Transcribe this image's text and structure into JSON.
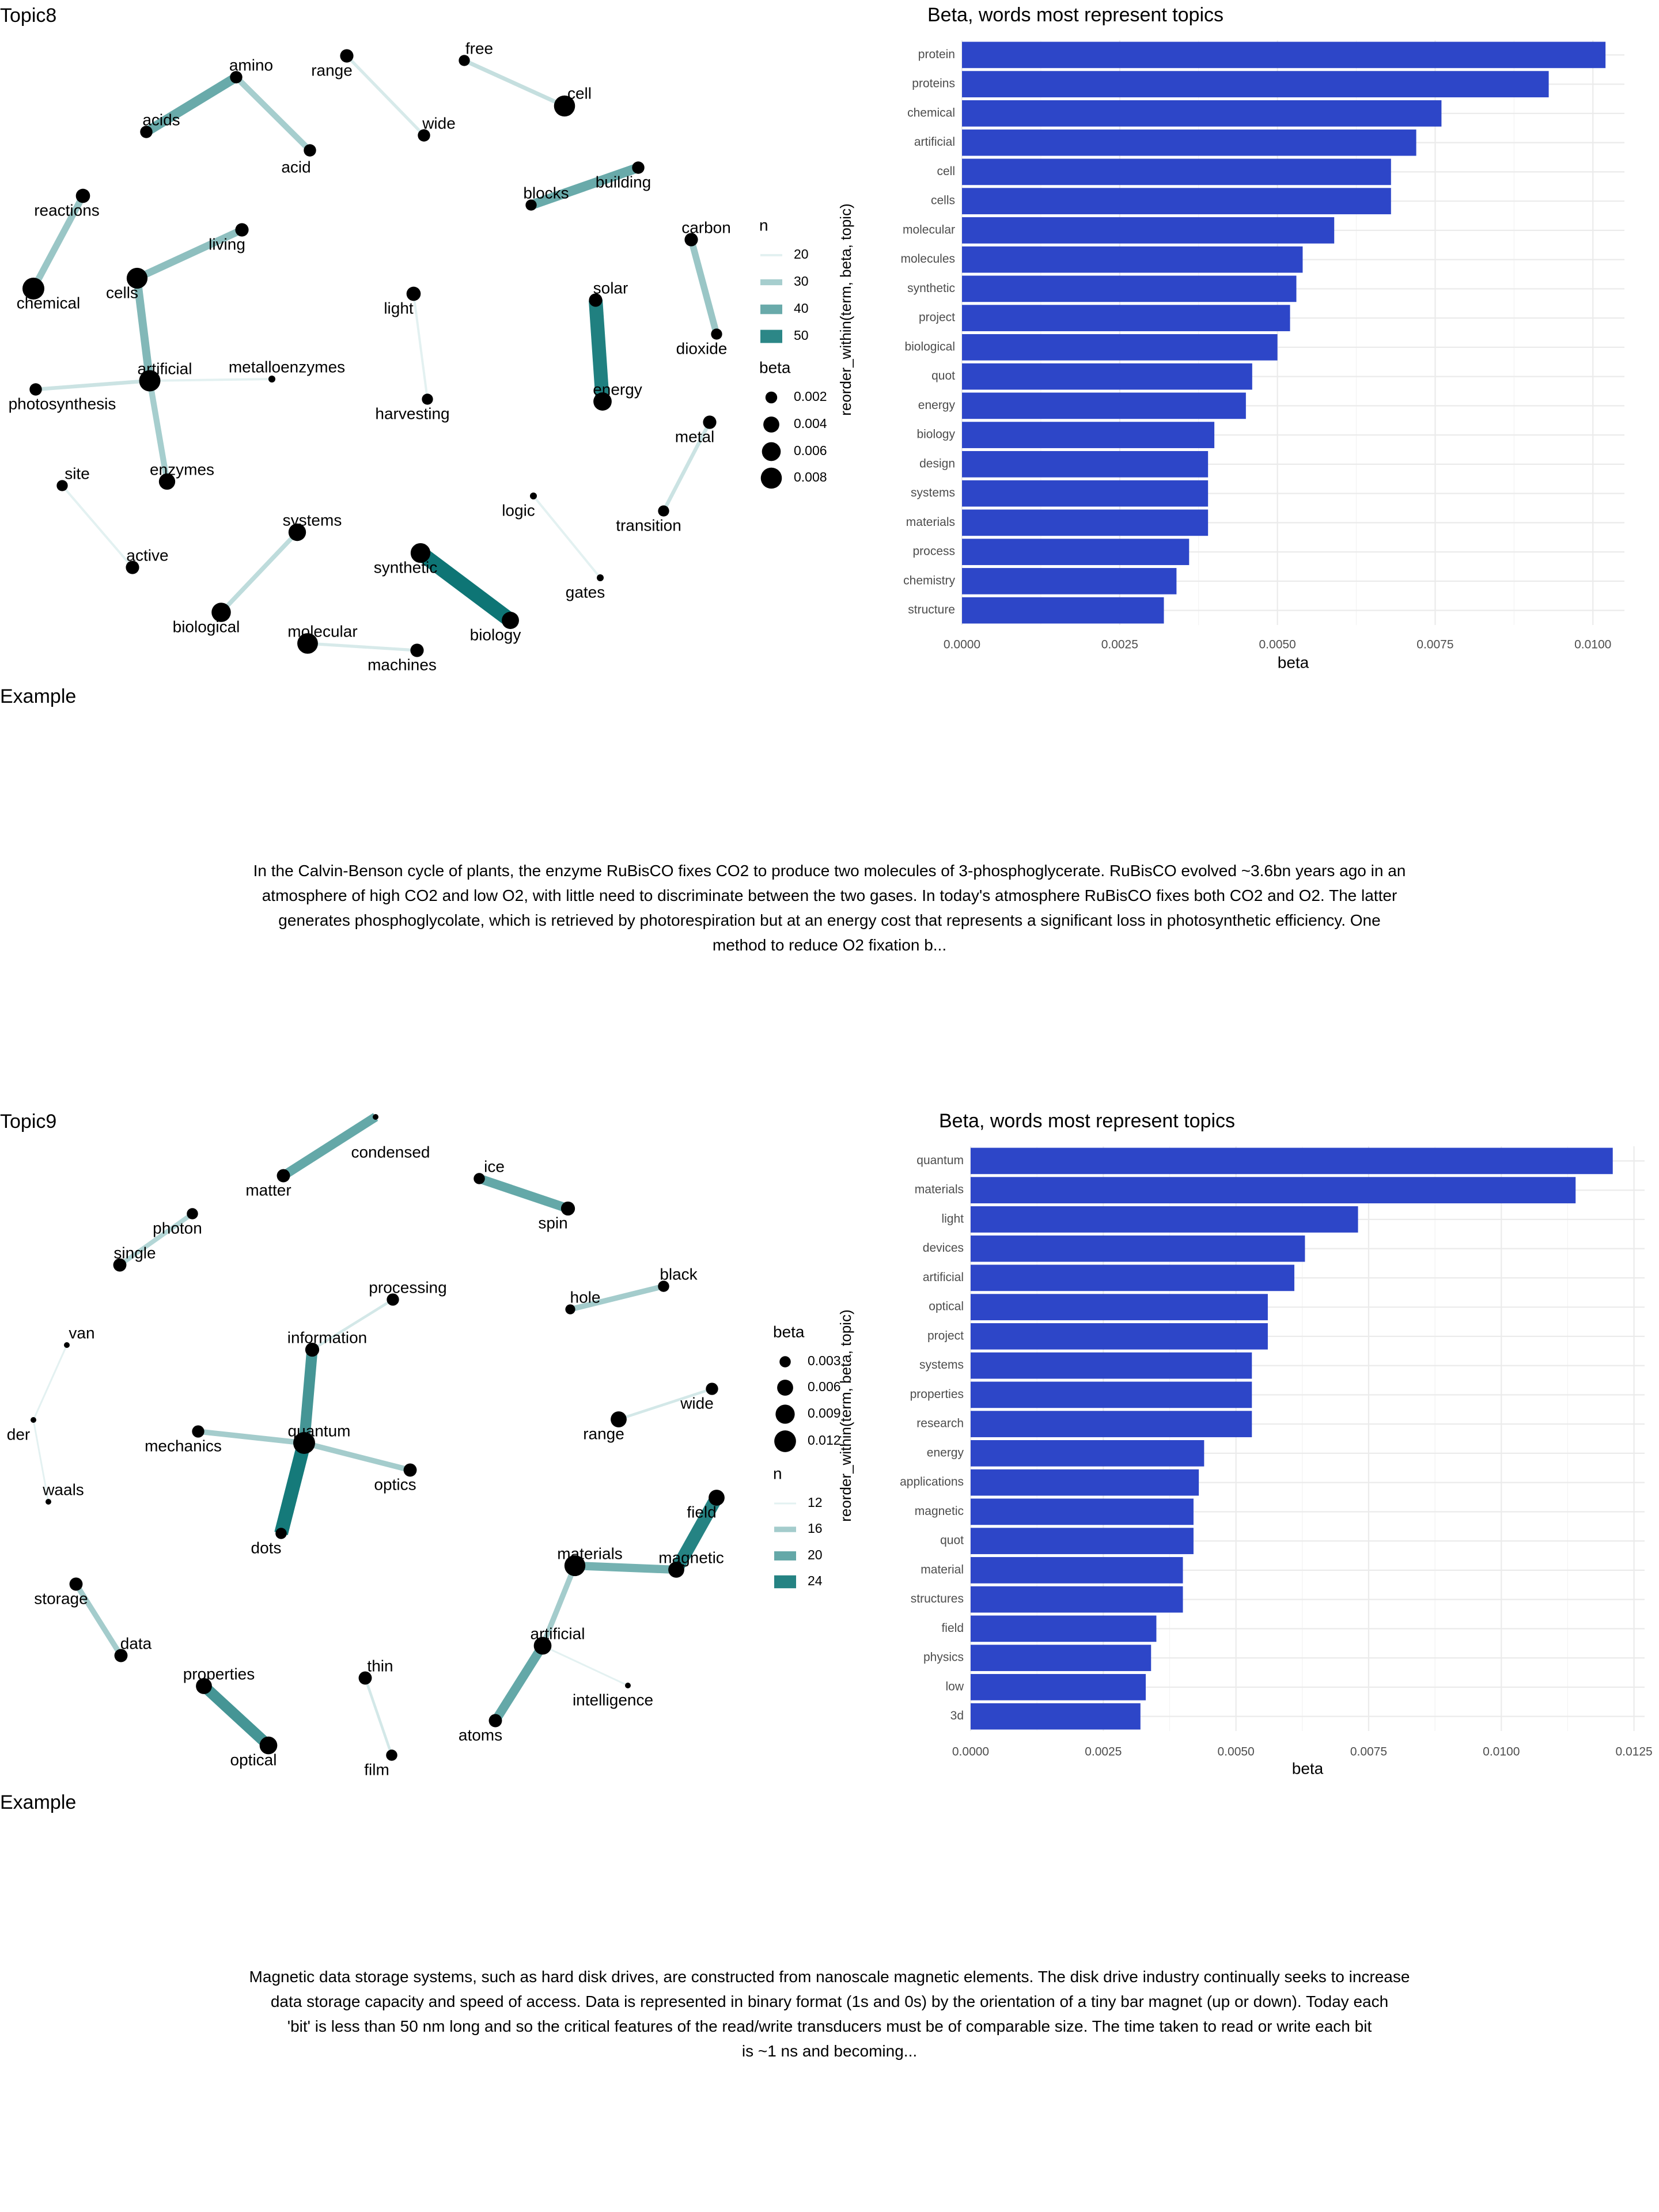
{
  "colors": {
    "bar": "#2D46C8",
    "grid": "#EBEBEB",
    "text": "#000000",
    "axis_text": "#4D4D4D"
  },
  "sections": [
    {
      "network": {
        "title": "Topic8",
        "nodes": [
          {
            "label": "amino",
            "beta": 0.0022
          },
          {
            "label": "acids",
            "beta": 0.0022
          },
          {
            "label": "acid",
            "beta": 0.0022
          },
          {
            "label": "range",
            "beta": 0.0026
          },
          {
            "label": "wide",
            "beta": 0.0022
          },
          {
            "label": "free",
            "beta": 0.0018
          },
          {
            "label": "cell",
            "beta": 0.008
          },
          {
            "label": "reactions",
            "beta": 0.003
          },
          {
            "label": "chemical",
            "beta": 0.0088
          },
          {
            "label": "blocks",
            "beta": 0.0018
          },
          {
            "label": "building",
            "beta": 0.0022
          },
          {
            "label": "carbon",
            "beta": 0.0026
          },
          {
            "label": "dioxide",
            "beta": 0.0018
          },
          {
            "label": "living",
            "beta": 0.0026
          },
          {
            "label": "cells",
            "beta": 0.0078
          },
          {
            "label": "light",
            "beta": 0.003
          },
          {
            "label": "solar",
            "beta": 0.0026
          },
          {
            "label": "artificial",
            "beta": 0.0082
          },
          {
            "label": "metalloenzymes",
            "beta": 0.0012
          },
          {
            "label": "photosynthesis",
            "beta": 0.0022
          },
          {
            "label": "harvesting",
            "beta": 0.0018
          },
          {
            "label": "energy",
            "beta": 0.0056
          },
          {
            "label": "metal",
            "beta": 0.0026
          },
          {
            "label": "site",
            "beta": 0.0018
          },
          {
            "label": "enzymes",
            "beta": 0.0042
          },
          {
            "label": "logic",
            "beta": 0.0012
          },
          {
            "label": "transition",
            "beta": 0.0018
          },
          {
            "label": "systems",
            "beta": 0.005
          },
          {
            "label": "active",
            "beta": 0.0026
          },
          {
            "label": "synthetic",
            "beta": 0.0068
          },
          {
            "label": "gates",
            "beta": 0.0012
          },
          {
            "label": "biological",
            "beta": 0.0064
          },
          {
            "label": "molecular",
            "beta": 0.0076
          },
          {
            "label": "biology",
            "beta": 0.0048
          },
          {
            "label": "machines",
            "beta": 0.0026
          }
        ],
        "edges": [
          {
            "from": "amino",
            "to": "acids",
            "n": 40
          },
          {
            "from": "amino",
            "to": "acid",
            "n": 30
          },
          {
            "from": "range",
            "to": "wide",
            "n": 22
          },
          {
            "from": "free",
            "to": "cell",
            "n": 25
          },
          {
            "from": "reactions",
            "to": "chemical",
            "n": 32
          },
          {
            "from": "blocks",
            "to": "building",
            "n": 40
          },
          {
            "from": "carbon",
            "to": "dioxide",
            "n": 32
          },
          {
            "from": "cells",
            "to": "living",
            "n": 34
          },
          {
            "from": "cells",
            "to": "artificial",
            "n": 36
          },
          {
            "from": "solar",
            "to": "energy",
            "n": 52
          },
          {
            "from": "light",
            "to": "harvesting",
            "n": 20
          },
          {
            "from": "artificial",
            "to": "metalloenzymes",
            "n": 20
          },
          {
            "from": "artificial",
            "to": "photosynthesis",
            "n": 24
          },
          {
            "from": "artificial",
            "to": "enzymes",
            "n": 30
          },
          {
            "from": "metal",
            "to": "transition",
            "n": 24
          },
          {
            "from": "site",
            "to": "active",
            "n": 20
          },
          {
            "from": "logic",
            "to": "gates",
            "n": 20
          },
          {
            "from": "systems",
            "to": "biological",
            "n": 26
          },
          {
            "from": "synthetic",
            "to": "biology",
            "n": 55
          },
          {
            "from": "molecular",
            "to": "machines",
            "n": 22
          }
        ],
        "legend_n": {
          "title": "n",
          "items": [
            {
              "label": "20",
              "value": 20
            },
            {
              "label": "30",
              "value": 30
            },
            {
              "label": "40",
              "value": 40
            },
            {
              "label": "50",
              "value": 50
            }
          ]
        },
        "legend_beta": {
          "title": "beta",
          "items": [
            {
              "label": "0.002",
              "value": 0.002
            },
            {
              "label": "0.004",
              "value": 0.004
            },
            {
              "label": "0.006",
              "value": 0.006
            },
            {
              "label": "0.008",
              "value": 0.008
            }
          ]
        }
      },
      "chart_data": {
        "type": "bar",
        "title": "Beta, words most represent topics",
        "xlabel": "beta",
        "ylabel": "reorder_within(term, beta, topic)",
        "xlim": [
          0,
          0.0105
        ],
        "x_ticks": [
          "0.0000",
          "0.0025",
          "0.0050",
          "0.0075",
          "0.0100"
        ],
        "x_tick_values": [
          0,
          0.0025,
          0.005,
          0.0075,
          0.01
        ],
        "grid": true,
        "categories": [
          "protein",
          "proteins",
          "chemical",
          "artificial",
          "cell",
          "cells",
          "molecular",
          "molecules",
          "synthetic",
          "project",
          "biological",
          "quot",
          "energy",
          "biology",
          "design",
          "systems",
          "materials",
          "process",
          "chemistry",
          "structure"
        ],
        "values": [
          0.0102,
          0.0093,
          0.0076,
          0.0072,
          0.0068,
          0.0068,
          0.0059,
          0.0054,
          0.0053,
          0.0052,
          0.005,
          0.0046,
          0.0045,
          0.004,
          0.0039,
          0.0039,
          0.0039,
          0.0036,
          0.0034,
          0.0032
        ]
      },
      "example": {
        "label": "Example",
        "lines": [
          "In the Calvin-Benson cycle of plants, the enzyme RuBisCO fixes CO2 to produce two molecules of 3-phosphoglycerate. RuBisCO evolved ~3.6bn years ago in an",
          "atmosphere of high CO2 and low O2, with little need to discriminate between the two gases. In today's atmosphere RuBisCO fixes both CO2 and O2. The latter",
          "generates phosphoglycolate, which is retrieved by photorespiration but at an energy cost that represents a significant loss in photosynthetic efficiency. One",
          "method to reduce O2 fixation b..."
        ]
      }
    },
    {
      "network": {
        "title": "Topic9",
        "nodes": [
          {
            "label": "condensed",
            "beta": 0.0018
          },
          {
            "label": "matter",
            "beta": 0.004
          },
          {
            "label": "ice",
            "beta": 0.003
          },
          {
            "label": "spin",
            "beta": 0.0045
          },
          {
            "label": "photon",
            "beta": 0.003
          },
          {
            "label": "single",
            "beta": 0.004
          },
          {
            "label": "processing",
            "beta": 0.0035
          },
          {
            "label": "information",
            "beta": 0.0045
          },
          {
            "label": "hole",
            "beta": 0.0025
          },
          {
            "label": "black",
            "beta": 0.003
          },
          {
            "label": "van",
            "beta": 0.0018
          },
          {
            "label": "wide",
            "beta": 0.0035
          },
          {
            "label": "range",
            "beta": 0.006
          },
          {
            "label": "der",
            "beta": 0.0018
          },
          {
            "label": "mechanics",
            "beta": 0.0035
          },
          {
            "label": "quantum",
            "beta": 0.0122
          },
          {
            "label": "optics",
            "beta": 0.004
          },
          {
            "label": "waals",
            "beta": 0.0018
          },
          {
            "label": "dots",
            "beta": 0.003
          },
          {
            "label": "field",
            "beta": 0.006
          },
          {
            "label": "materials",
            "beta": 0.011
          },
          {
            "label": "magnetic",
            "beta": 0.006
          },
          {
            "label": "storage",
            "beta": 0.004
          },
          {
            "label": "artificial",
            "beta": 0.0075
          },
          {
            "label": "data",
            "beta": 0.004
          },
          {
            "label": "thin",
            "beta": 0.004
          },
          {
            "label": "properties",
            "beta": 0.006
          },
          {
            "label": "intelligence",
            "beta": 0.0018
          },
          {
            "label": "atoms",
            "beta": 0.004
          },
          {
            "label": "optical",
            "beta": 0.0075
          },
          {
            "label": "film",
            "beta": 0.003
          }
        ],
        "edges": [
          {
            "from": "matter",
            "to": "condensed",
            "n": 20
          },
          {
            "from": "ice",
            "to": "spin",
            "n": 20
          },
          {
            "from": "photon",
            "to": "single",
            "n": 15
          },
          {
            "from": "information",
            "to": "processing",
            "n": 13
          },
          {
            "from": "hole",
            "to": "black",
            "n": 16
          },
          {
            "from": "van",
            "to": "der",
            "n": 12
          },
          {
            "from": "der",
            "to": "waals",
            "n": 12
          },
          {
            "from": "range",
            "to": "wide",
            "n": 13
          },
          {
            "from": "quantum",
            "to": "information",
            "n": 22
          },
          {
            "from": "quantum",
            "to": "mechanics",
            "n": 16
          },
          {
            "from": "quantum",
            "to": "optics",
            "n": 16
          },
          {
            "from": "quantum",
            "to": "dots",
            "n": 25
          },
          {
            "from": "field",
            "to": "magnetic",
            "n": 24
          },
          {
            "from": "materials",
            "to": "magnetic",
            "n": 19
          },
          {
            "from": "materials",
            "to": "artificial",
            "n": 16
          },
          {
            "from": "artificial",
            "to": "intelligence",
            "n": 12
          },
          {
            "from": "artificial",
            "to": "atoms",
            "n": 20
          },
          {
            "from": "storage",
            "to": "data",
            "n": 16
          },
          {
            "from": "properties",
            "to": "optical",
            "n": 22
          },
          {
            "from": "thin",
            "to": "film",
            "n": 13
          }
        ],
        "legend_beta": {
          "title": "beta",
          "items": [
            {
              "label": "0.003",
              "value": 0.003
            },
            {
              "label": "0.006",
              "value": 0.006
            },
            {
              "label": "0.009",
              "value": 0.009
            },
            {
              "label": "0.012",
              "value": 0.012
            }
          ]
        },
        "legend_n": {
          "title": "n",
          "items": [
            {
              "label": "12",
              "value": 12
            },
            {
              "label": "16",
              "value": 16
            },
            {
              "label": "20",
              "value": 20
            },
            {
              "label": "24",
              "value": 24
            }
          ]
        }
      },
      "chart_data": {
        "type": "bar",
        "title": "Beta, words most represent topics",
        "xlabel": "beta",
        "ylabel": "reorder_within(term, beta, topic)",
        "xlim": [
          0,
          0.0127
        ],
        "x_ticks": [
          "0.0000",
          "0.0025",
          "0.0050",
          "0.0075",
          "0.0100",
          "0.0125"
        ],
        "x_tick_values": [
          0,
          0.0025,
          0.005,
          0.0075,
          0.01,
          0.0125
        ],
        "grid": true,
        "categories": [
          "quantum",
          "materials",
          "light",
          "devices",
          "artificial",
          "optical",
          "project",
          "systems",
          "properties",
          "research",
          "energy",
          "applications",
          "magnetic",
          "quot",
          "material",
          "structures",
          "field",
          "physics",
          "low",
          "3d"
        ],
        "values": [
          0.0121,
          0.0114,
          0.0073,
          0.0063,
          0.0061,
          0.0056,
          0.0056,
          0.0053,
          0.0053,
          0.0053,
          0.0044,
          0.0043,
          0.0042,
          0.0042,
          0.004,
          0.004,
          0.0035,
          0.0034,
          0.0033,
          0.0032
        ]
      },
      "example": {
        "label": "Example",
        "lines": [
          "Magnetic data storage systems, such as hard disk drives, are constructed from nanoscale magnetic elements. The disk drive industry continually seeks to increase",
          "data storage capacity and speed of access. Data is represented in binary format (1s and 0s) by the orientation of a tiny bar magnet (up or down). Today each",
          "'bit' is less than 50 nm long and so the critical features of the read/write transducers must be of comparable size. The time taken to read or write each bit",
          "is ~1 ns and becoming..."
        ]
      }
    }
  ]
}
